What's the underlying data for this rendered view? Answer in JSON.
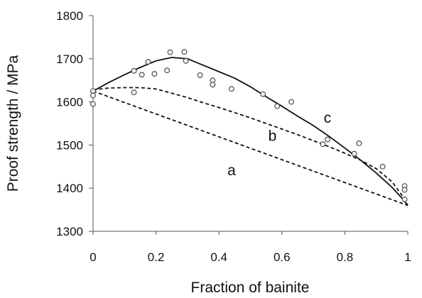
{
  "chart_data": {
    "type": "scatter",
    "title": "",
    "xlabel": "Fraction of bainite",
    "ylabel": "Proof strength / MPa",
    "xlim": [
      0,
      1
    ],
    "ylim": [
      1300,
      1800
    ],
    "x_ticks": [
      0,
      0.2,
      0.4,
      0.6,
      0.8,
      1
    ],
    "x_tick_labels": [
      "0",
      "0.2",
      "0.4",
      "0.6",
      "0.8",
      "1"
    ],
    "y_ticks": [
      1300,
      1400,
      1500,
      1600,
      1700,
      1800
    ],
    "y_tick_labels": [
      "1300",
      "1400",
      "1500",
      "1600",
      "1700",
      "1800"
    ],
    "grid": false,
    "legend": "none",
    "series": [
      {
        "kind": "points",
        "marker": "open-circle",
        "color": "#444444",
        "points": [
          {
            "x": 0.0,
            "y": 1625
          },
          {
            "x": 0.0,
            "y": 1615
          },
          {
            "x": 0.0,
            "y": 1595
          },
          {
            "x": 0.13,
            "y": 1672
          },
          {
            "x": 0.13,
            "y": 1622
          },
          {
            "x": 0.155,
            "y": 1663
          },
          {
            "x": 0.175,
            "y": 1693
          },
          {
            "x": 0.195,
            "y": 1665
          },
          {
            "x": 0.235,
            "y": 1673
          },
          {
            "x": 0.245,
            "y": 1715
          },
          {
            "x": 0.29,
            "y": 1716
          },
          {
            "x": 0.295,
            "y": 1695
          },
          {
            "x": 0.34,
            "y": 1662
          },
          {
            "x": 0.38,
            "y": 1650
          },
          {
            "x": 0.38,
            "y": 1640
          },
          {
            "x": 0.44,
            "y": 1630
          },
          {
            "x": 0.54,
            "y": 1618
          },
          {
            "x": 0.585,
            "y": 1590
          },
          {
            "x": 0.63,
            "y": 1600
          },
          {
            "x": 0.73,
            "y": 1502
          },
          {
            "x": 0.745,
            "y": 1513
          },
          {
            "x": 0.83,
            "y": 1480
          },
          {
            "x": 0.845,
            "y": 1504
          },
          {
            "x": 0.92,
            "y": 1450
          },
          {
            "x": 0.99,
            "y": 1405
          },
          {
            "x": 0.99,
            "y": 1396
          },
          {
            "x": 0.99,
            "y": 1374
          }
        ]
      },
      {
        "kind": "line",
        "label": "c",
        "style": "solid",
        "color": "#111111",
        "points": [
          {
            "x": 0.0,
            "y": 1625
          },
          {
            "x": 0.05,
            "y": 1645
          },
          {
            "x": 0.1,
            "y": 1663
          },
          {
            "x": 0.15,
            "y": 1680
          },
          {
            "x": 0.2,
            "y": 1695
          },
          {
            "x": 0.25,
            "y": 1703
          },
          {
            "x": 0.3,
            "y": 1700
          },
          {
            "x": 0.35,
            "y": 1685
          },
          {
            "x": 0.4,
            "y": 1670
          },
          {
            "x": 0.45,
            "y": 1655
          },
          {
            "x": 0.5,
            "y": 1635
          },
          {
            "x": 0.55,
            "y": 1612
          },
          {
            "x": 0.6,
            "y": 1590
          },
          {
            "x": 0.65,
            "y": 1567
          },
          {
            "x": 0.7,
            "y": 1545
          },
          {
            "x": 0.75,
            "y": 1520
          },
          {
            "x": 0.8,
            "y": 1493
          },
          {
            "x": 0.85,
            "y": 1465
          },
          {
            "x": 0.9,
            "y": 1435
          },
          {
            "x": 0.95,
            "y": 1402
          },
          {
            "x": 0.98,
            "y": 1378
          },
          {
            "x": 1.0,
            "y": 1360
          }
        ]
      },
      {
        "kind": "line",
        "label": "b",
        "style": "dashed",
        "color": "#111111",
        "points": [
          {
            "x": 0.0,
            "y": 1628
          },
          {
            "x": 0.05,
            "y": 1632
          },
          {
            "x": 0.1,
            "y": 1633
          },
          {
            "x": 0.15,
            "y": 1633
          },
          {
            "x": 0.2,
            "y": 1630
          },
          {
            "x": 0.25,
            "y": 1620
          },
          {
            "x": 0.3,
            "y": 1610
          },
          {
            "x": 0.35,
            "y": 1598
          },
          {
            "x": 0.4,
            "y": 1587
          },
          {
            "x": 0.45,
            "y": 1575
          },
          {
            "x": 0.5,
            "y": 1563
          },
          {
            "x": 0.55,
            "y": 1550
          },
          {
            "x": 0.6,
            "y": 1537
          },
          {
            "x": 0.65,
            "y": 1524
          },
          {
            "x": 0.7,
            "y": 1510
          },
          {
            "x": 0.75,
            "y": 1496
          },
          {
            "x": 0.8,
            "y": 1481
          },
          {
            "x": 0.85,
            "y": 1465
          },
          {
            "x": 0.9,
            "y": 1445
          },
          {
            "x": 0.95,
            "y": 1415
          },
          {
            "x": 0.98,
            "y": 1385
          },
          {
            "x": 1.0,
            "y": 1360
          }
        ]
      },
      {
        "kind": "line",
        "label": "a",
        "style": "dashed",
        "color": "#111111",
        "points": [
          {
            "x": 0.0,
            "y": 1625
          },
          {
            "x": 1.0,
            "y": 1360
          }
        ]
      }
    ],
    "annotations": [
      {
        "text": "c",
        "x": 0.745,
        "y": 1552
      },
      {
        "text": "b",
        "x": 0.57,
        "y": 1510
      },
      {
        "text": "a",
        "x": 0.44,
        "y": 1430
      }
    ]
  }
}
